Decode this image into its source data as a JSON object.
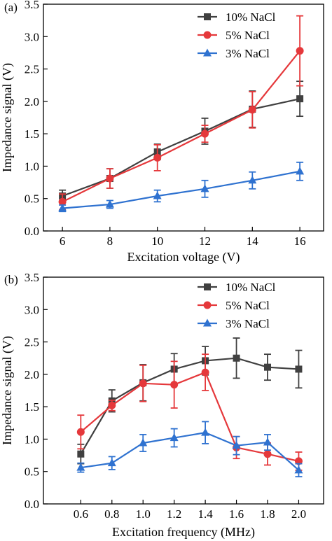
{
  "chart_data": [
    {
      "type": "line",
      "panel_label": "(a)",
      "xlabel": "Excitation voltage (V)",
      "ylabel": "Impedance  signal (V)",
      "xlim": [
        5.2,
        17.0
      ],
      "ylim": [
        0.0,
        3.5
      ],
      "xticks": [
        6,
        8,
        10,
        12,
        14,
        16
      ],
      "xtick_labels": [
        "6",
        "8",
        "10",
        "12",
        "14",
        "16"
      ],
      "yticks": [
        0.0,
        0.5,
        1.0,
        1.5,
        2.0,
        2.5,
        3.0,
        3.5
      ],
      "ytick_labels": [
        "0.0",
        "0.5",
        "1.0",
        "1.5",
        "2.0",
        "2.5",
        "3.0",
        "3.5"
      ],
      "legend_position": "top-left",
      "x": [
        6,
        8,
        10,
        12,
        14,
        16
      ],
      "series": [
        {
          "name": "10% NaCl",
          "color": "#404040",
          "marker": "square",
          "values": [
            0.54,
            0.81,
            1.22,
            1.54,
            1.88,
            2.04
          ],
          "errors": [
            0.09,
            0.15,
            0.12,
            0.2,
            0.28,
            0.27
          ]
        },
        {
          "name": "5% NaCl",
          "color": "#e5383b",
          "marker": "circle",
          "values": [
            0.45,
            0.81,
            1.13,
            1.5,
            1.87,
            2.78
          ],
          "errors": [
            0.12,
            0.15,
            0.2,
            0.13,
            0.28,
            0.54
          ]
        },
        {
          "name": "3% NaCl",
          "color": "#2f72d0",
          "marker": "triangle",
          "values": [
            0.35,
            0.41,
            0.54,
            0.65,
            0.78,
            0.92
          ],
          "errors": [
            0.05,
            0.06,
            0.09,
            0.13,
            0.13,
            0.14
          ]
        }
      ]
    },
    {
      "type": "line",
      "panel_label": "(b)",
      "xlabel": "Excitation frequency (MHz)",
      "ylabel": "Impedance  signal (V)",
      "xlim": [
        0.36,
        2.16
      ],
      "ylim": [
        0.0,
        3.5
      ],
      "xticks": [
        0.6,
        0.8,
        1.0,
        1.2,
        1.4,
        1.6,
        1.8,
        2.0
      ],
      "xtick_labels": [
        "0.6",
        "0.8",
        "1.0",
        "1.2",
        "1.4",
        "1.6",
        "1.8",
        "2.0"
      ],
      "yticks": [
        0.0,
        0.5,
        1.0,
        1.5,
        2.0,
        2.5,
        3.0,
        3.5
      ],
      "ytick_labels": [
        "0.0",
        "0.5",
        "1.0",
        "1.5",
        "2.0",
        "2.5",
        "3.0",
        "3.5"
      ],
      "legend_position": "top-right",
      "x": [
        0.6,
        0.8,
        1.0,
        1.2,
        1.4,
        1.6,
        1.8,
        2.0
      ],
      "series": [
        {
          "name": "10% NaCl",
          "color": "#404040",
          "marker": "square",
          "values": [
            0.77,
            1.59,
            1.87,
            2.08,
            2.21,
            2.25,
            2.11,
            2.08
          ],
          "errors": [
            0.15,
            0.17,
            0.28,
            0.24,
            0.22,
            0.31,
            0.2,
            0.29
          ]
        },
        {
          "name": "5% NaCl",
          "color": "#e5383b",
          "marker": "circle",
          "values": [
            1.11,
            1.52,
            1.86,
            1.84,
            2.03,
            0.87,
            0.77,
            0.66
          ],
          "errors": [
            0.26,
            0.08,
            0.28,
            0.36,
            0.28,
            0.17,
            0.17,
            0.14
          ]
        },
        {
          "name": "3% NaCl",
          "color": "#2f72d0",
          "marker": "triangle",
          "values": [
            0.56,
            0.63,
            0.94,
            1.02,
            1.1,
            0.9,
            0.95,
            0.52
          ],
          "errors": [
            0.07,
            0.1,
            0.13,
            0.14,
            0.17,
            0.14,
            0.12,
            0.1
          ]
        }
      ]
    }
  ]
}
